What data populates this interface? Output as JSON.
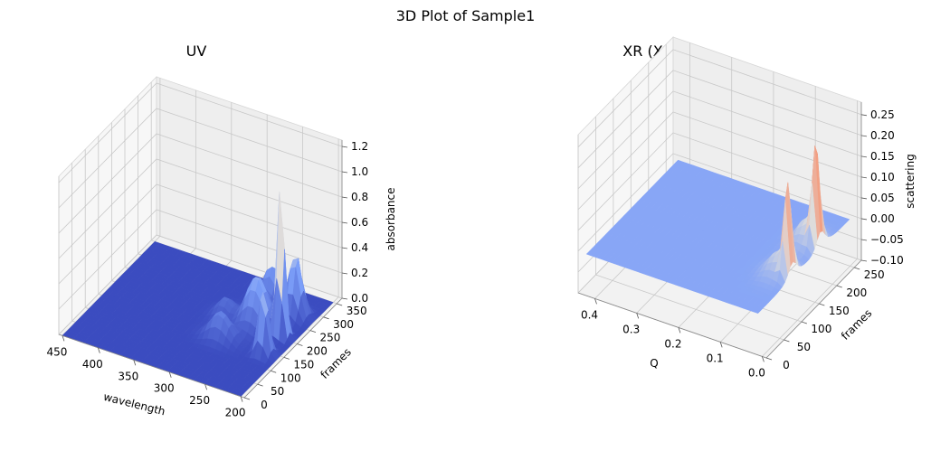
{
  "figure": {
    "title": "3D Plot of Sample1"
  },
  "chart_data": [
    {
      "type": "surface3d",
      "title": "UV",
      "xlabel": "wavelength",
      "ylabel": "frames",
      "zlabel": "absorbance",
      "xlim": [
        195,
        455
      ],
      "ylim": [
        0,
        370
      ],
      "zlim": [
        0.0,
        1.25
      ],
      "xticks": [
        200,
        250,
        300,
        350,
        400,
        450
      ],
      "yticks": [
        0,
        50,
        100,
        150,
        200,
        250,
        300,
        350
      ],
      "zticks": [
        0.0,
        0.2,
        0.4,
        0.6,
        0.8,
        1.0,
        1.2
      ],
      "xtick_labels": [
        "200",
        "250",
        "300",
        "350",
        "400",
        "450"
      ],
      "ytick_labels": [
        "0",
        "50",
        "100",
        "150",
        "200",
        "250",
        "300",
        "350"
      ],
      "ztick_labels": [
        "0.0",
        "0.2",
        "0.4",
        "0.6",
        "0.8",
        "1.0",
        "1.2"
      ],
      "colormap": "coolwarm",
      "surface_range": {
        "x": [
          200,
          450
        ],
        "y": [
          0,
          350
        ]
      },
      "peaks": [
        {
          "x": 220,
          "y": 205,
          "height": 1.22,
          "sx": 5,
          "sy": 7
        },
        {
          "x": 220,
          "y": 140,
          "height": 0.55,
          "sx": 6,
          "sy": 10
        },
        {
          "x": 225,
          "y": 275,
          "height": 0.5,
          "sx": 8,
          "sy": 14
        },
        {
          "x": 255,
          "y": 210,
          "height": 0.4,
          "sx": 14,
          "sy": 22
        },
        {
          "x": 260,
          "y": 280,
          "height": 0.32,
          "sx": 12,
          "sy": 18
        },
        {
          "x": 280,
          "y": 140,
          "height": 0.22,
          "sx": 14,
          "sy": 16
        },
        {
          "x": 300,
          "y": 210,
          "height": 0.14,
          "sx": 10,
          "sy": 20
        }
      ]
    },
    {
      "type": "surface3d",
      "title": "XR (X-ray)",
      "xlabel": "Q",
      "ylabel": "frames",
      "zlabel": "scattering",
      "xlim": [
        -0.01,
        0.44
      ],
      "ylim": [
        0,
        270
      ],
      "zlim": [
        -0.1,
        0.28
      ],
      "xticks": [
        0.0,
        0.1,
        0.2,
        0.3,
        0.4
      ],
      "yticks": [
        0,
        50,
        100,
        150,
        200,
        250
      ],
      "zticks": [
        -0.1,
        -0.05,
        0.0,
        0.05,
        0.1,
        0.15,
        0.2,
        0.25
      ],
      "xtick_labels": [
        "0.0",
        "0.1",
        "0.2",
        "0.3",
        "0.4"
      ],
      "ytick_labels": [
        "0",
        "50",
        "100",
        "150",
        "200",
        "250"
      ],
      "ztick_labels": [
        "−0.10",
        "−0.05",
        "0.00",
        "0.05",
        "0.10",
        "0.15",
        "0.20",
        "0.25"
      ],
      "colormap": "coolwarm",
      "surface_range": {
        "x": [
          0.01,
          0.42
        ],
        "y": [
          0,
          260
        ]
      },
      "peaks": [
        {
          "x": 0.022,
          "y": 98,
          "height": 0.2,
          "sx": 0.006,
          "sy": 10
        },
        {
          "x": 0.022,
          "y": 178,
          "height": 0.22,
          "sx": 0.006,
          "sy": 10
        },
        {
          "x": 0.045,
          "y": 100,
          "height": 0.05,
          "sx": 0.02,
          "sy": 20
        },
        {
          "x": 0.045,
          "y": 180,
          "height": 0.06,
          "sx": 0.02,
          "sy": 20
        }
      ]
    }
  ]
}
